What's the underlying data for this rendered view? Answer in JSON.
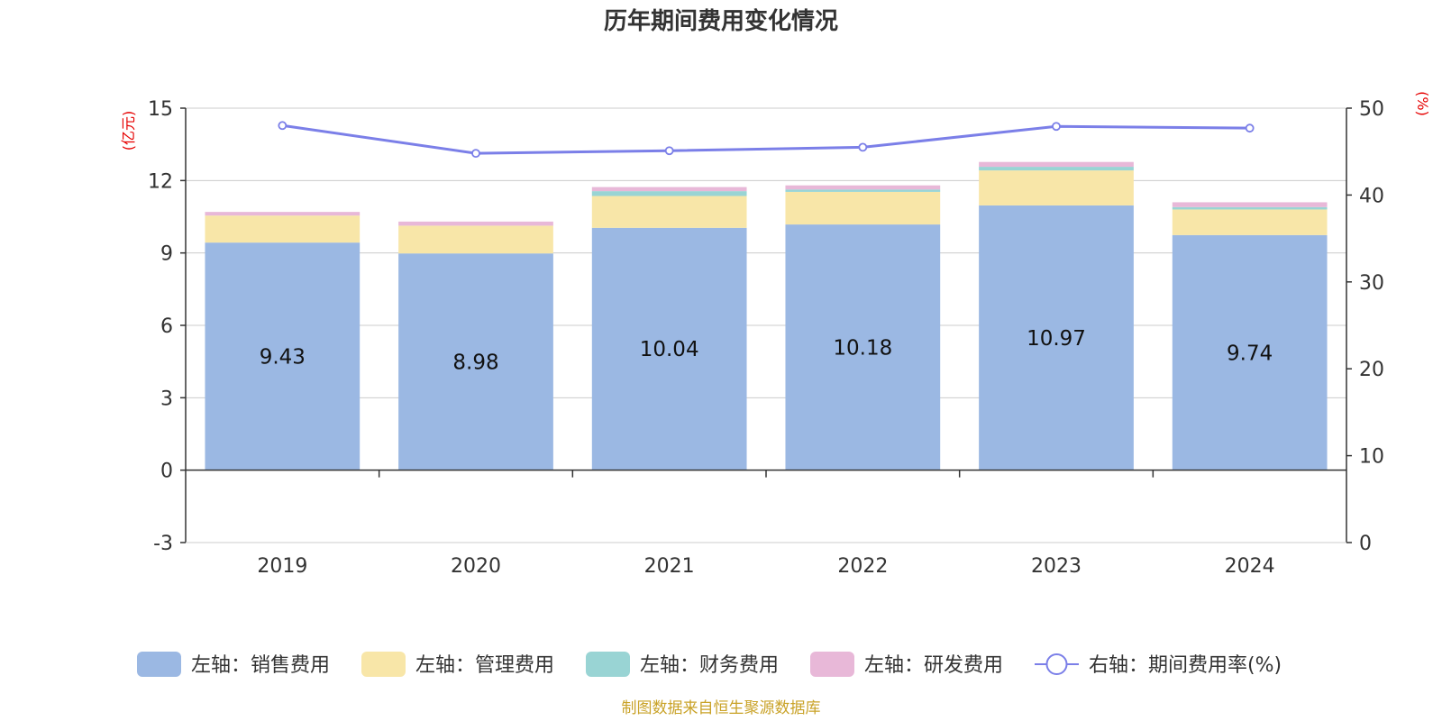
{
  "title": "历年期间费用变化情况",
  "source": "制图数据来自恒生聚源数据库",
  "chart_data": {
    "type": "bar",
    "stacked": true,
    "categories": [
      "2019",
      "2020",
      "2021",
      "2022",
      "2023",
      "2024"
    ],
    "series": [
      {
        "name": "左轴：销售费用",
        "axis": "left",
        "type": "bar",
        "color": "#9bb8e3",
        "values": [
          9.43,
          8.98,
          10.04,
          10.18,
          10.97,
          9.74
        ]
      },
      {
        "name": "左轴：管理费用",
        "axis": "left",
        "type": "bar",
        "color": "#f8e6a8",
        "values": [
          1.12,
          1.15,
          1.32,
          1.35,
          1.45,
          1.06
        ]
      },
      {
        "name": "左轴：财务费用",
        "axis": "left",
        "type": "bar",
        "color": "#99d4d4",
        "values": [
          0.0,
          0.0,
          0.2,
          0.1,
          0.15,
          0.1
        ]
      },
      {
        "name": "左轴：研发费用",
        "axis": "left",
        "type": "bar",
        "color": "#e8b8d8",
        "values": [
          0.15,
          0.17,
          0.17,
          0.17,
          0.2,
          0.2
        ]
      },
      {
        "name": "右轴：期间费用率(%)",
        "axis": "right",
        "type": "line",
        "color": "#7b7fe8",
        "values": [
          48.0,
          44.8,
          45.1,
          45.5,
          47.9,
          47.7
        ]
      }
    ],
    "bar_value_labels": [
      "9.43",
      "8.98",
      "10.04",
      "10.18",
      "10.97",
      "9.74"
    ],
    "left_axis": {
      "unit": "(亿元)",
      "min": -3,
      "max": 15,
      "ticks": [
        -3,
        0,
        3,
        6,
        9,
        12,
        15
      ]
    },
    "right_axis": {
      "unit": "(%)",
      "min": 0,
      "max": 50,
      "ticks": [
        0,
        10,
        20,
        30,
        40,
        50
      ]
    },
    "grid": true,
    "legend": "bottom"
  }
}
